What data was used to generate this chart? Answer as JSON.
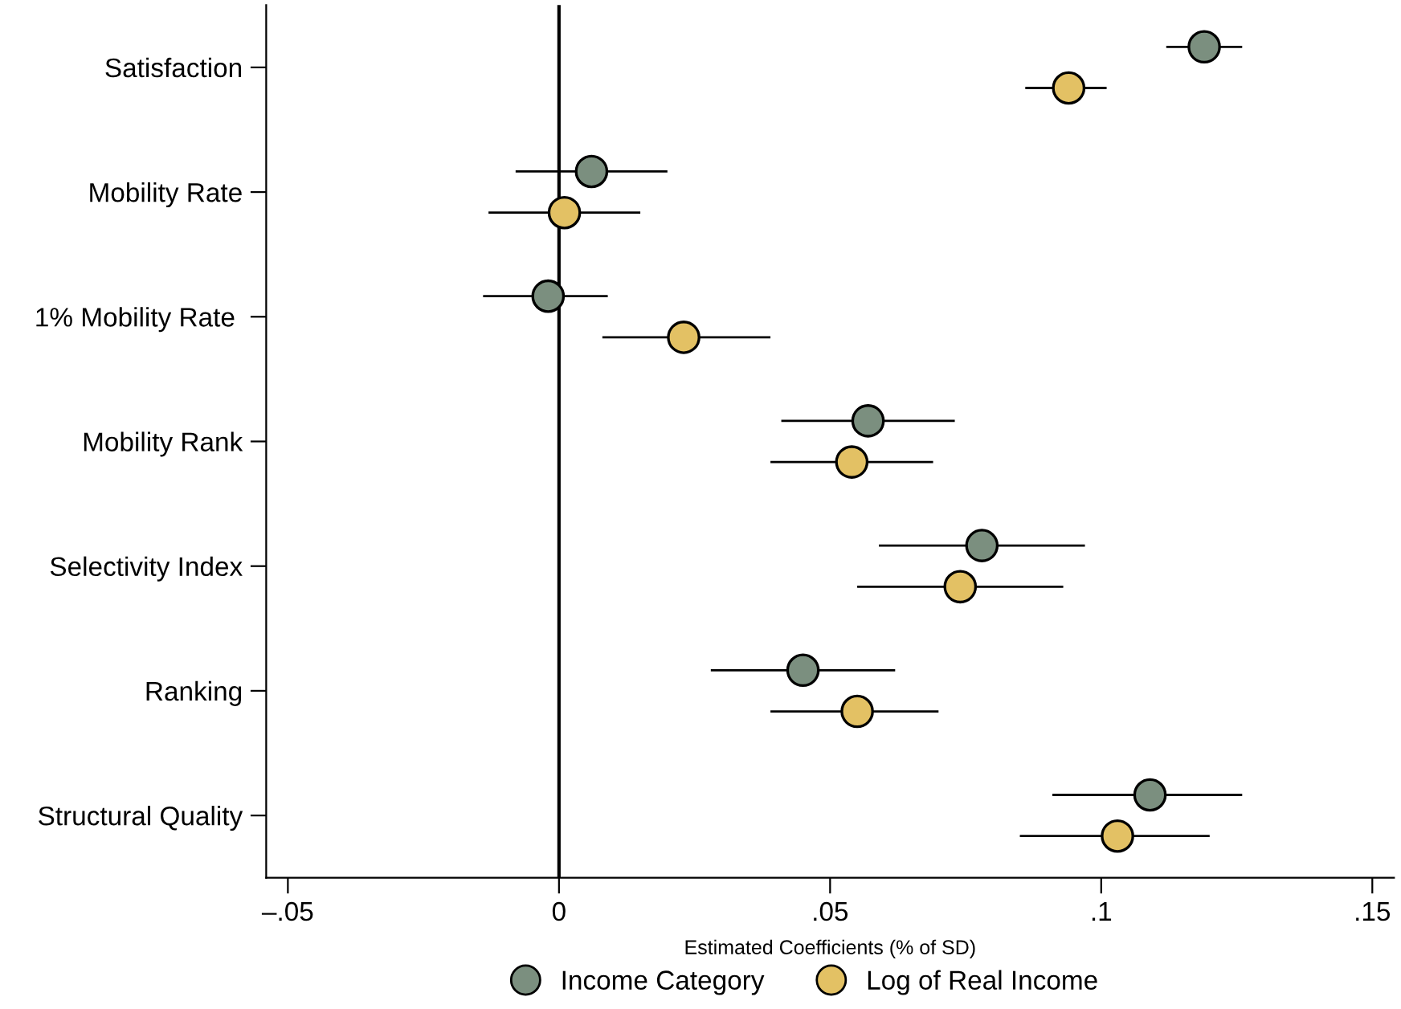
{
  "chart_data": {
    "type": "scatter",
    "orientation": "horizontal",
    "categories": [
      "Satisfaction",
      "Mobility Rate",
      "1% Mobility Rate ",
      "Mobility Rank",
      "Selectivity Index",
      "Ranking",
      "Structural Quality"
    ],
    "xlabel": "Estimated Coefficients (% of SD)",
    "series": [
      {
        "name": "Income Category",
        "color": "#7b8f7f",
        "values": [
          0.119,
          0.006,
          -0.002,
          0.057,
          0.078,
          0.045,
          0.109
        ],
        "errors": [
          [
            0.112,
            0.126
          ],
          [
            -0.008,
            0.02
          ],
          [
            -0.014,
            0.009
          ],
          [
            0.041,
            0.073
          ],
          [
            0.059,
            0.097
          ],
          [
            0.028,
            0.062
          ],
          [
            0.091,
            0.126
          ]
        ]
      },
      {
        "name": "Log of Real Income",
        "color": "#e3c164",
        "values": [
          0.094,
          0.001,
          0.023,
          0.054,
          0.074,
          0.055,
          0.103
        ],
        "errors": [
          [
            0.086,
            0.101
          ],
          [
            -0.013,
            0.015
          ],
          [
            0.008,
            0.039
          ],
          [
            0.039,
            0.069
          ],
          [
            0.055,
            0.093
          ],
          [
            0.039,
            0.07
          ],
          [
            0.085,
            0.12
          ]
        ]
      }
    ],
    "xlim": [
      -0.054,
      0.154
    ],
    "xticks": [
      {
        "value": -0.05,
        "label": "–.05"
      },
      0,
      {
        "value": 0.05,
        "label": ".05"
      },
      {
        "value": 0.1,
        "label": ".1"
      },
      {
        "value": 0.15,
        "label": ".15"
      }
    ],
    "ref_lines": [
      {
        "axis": "x",
        "value": 0,
        "color": "#000000",
        "line_style": "solid"
      }
    ],
    "marker": "circle",
    "grid": false,
    "legend": "bottom"
  }
}
